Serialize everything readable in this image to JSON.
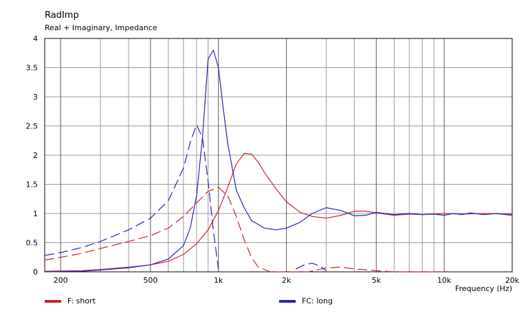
{
  "chart_data": {
    "type": "line",
    "title": "RadImp",
    "subtitle": "Real + Imaginary, Impedance",
    "xlabel": "Frequency  (Hz)",
    "ylabel": "",
    "xscale": "log",
    "xlim": [
      170,
      20000
    ],
    "ylim": [
      0,
      4
    ],
    "grid": true,
    "legend_position": "bottom",
    "y_ticks": [
      0,
      0.5,
      1,
      1.5,
      2,
      2.5,
      3,
      3.5,
      4
    ],
    "y_tick_labels": [
      "0",
      "0.5",
      "1",
      "1.5",
      "2",
      "2.5",
      "3",
      "3.5",
      "4"
    ],
    "x_ticks": [
      200,
      500,
      1000,
      2000,
      5000,
      10000,
      20000
    ],
    "x_tick_labels": [
      "200",
      "500",
      "1k",
      "2k",
      "5k",
      "10k",
      "20k"
    ],
    "x_minor_grid": [
      300,
      400,
      600,
      700,
      800,
      900,
      3000,
      4000,
      6000,
      7000,
      8000,
      9000
    ],
    "series": [
      {
        "name": "F: short",
        "color": "#cc2222",
        "parts": [
          {
            "kind": "real",
            "dash": false,
            "x": [
              170,
              250,
              300,
              400,
              500,
              600,
              700,
              800,
              900,
              1000,
              1100,
              1200,
              1300,
              1400,
              1500,
              1600,
              1800,
              2000,
              2300,
              2600,
              3000,
              3500,
              4000,
              4500,
              5000,
              6000,
              7000,
              8000,
              10000,
              12000,
              15000,
              20000
            ],
            "y": [
              0.01,
              0.02,
              0.04,
              0.08,
              0.12,
              0.18,
              0.3,
              0.48,
              0.72,
              1.05,
              1.45,
              1.85,
              2.03,
              2.02,
              1.88,
              1.7,
              1.42,
              1.2,
              1.02,
              0.95,
              0.92,
              0.97,
              1.04,
              1.04,
              1.01,
              0.97,
              0.99,
              0.98,
              1.0,
              0.99,
              1.0,
              0.99
            ]
          },
          {
            "kind": "imaginary",
            "dash": true,
            "x": [
              170,
              200,
              250,
              300,
              400,
              500,
              600,
              700,
              800,
              900,
              1000,
              1100,
              1200,
              1300,
              1400,
              1500,
              1700,
              2000,
              2500,
              2800,
              3000,
              3500,
              4000,
              5000,
              6000,
              7000,
              10000
            ],
            "y": [
              0.2,
              0.25,
              0.32,
              0.4,
              0.52,
              0.62,
              0.75,
              0.95,
              1.18,
              1.38,
              1.45,
              1.3,
              0.95,
              0.55,
              0.25,
              0.08,
              0.0,
              0.0,
              0.0,
              0.04,
              0.07,
              0.08,
              0.05,
              0.02,
              0.0,
              0.0,
              0.0
            ]
          }
        ]
      },
      {
        "name": "FC: long",
        "color": "#2222bb",
        "parts": [
          {
            "kind": "real",
            "dash": false,
            "x": [
              170,
              250,
              300,
              400,
              500,
              600,
              700,
              750,
              800,
              850,
              900,
              950,
              1000,
              1050,
              1100,
              1200,
              1300,
              1400,
              1600,
              1800,
              2000,
              2300,
              2600,
              3000,
              3500,
              4000,
              4500,
              5000,
              6000,
              7000,
              8000,
              9000,
              10000,
              11000,
              12000,
              13000,
              15000,
              17000,
              20000
            ],
            "y": [
              0.0,
              0.01,
              0.03,
              0.07,
              0.12,
              0.22,
              0.45,
              0.75,
              1.3,
              2.3,
              3.65,
              3.8,
              3.5,
              2.8,
              2.2,
              1.4,
              1.1,
              0.88,
              0.75,
              0.72,
              0.75,
              0.85,
              1.0,
              1.1,
              1.05,
              0.96,
              0.97,
              1.02,
              0.98,
              1.0,
              0.98,
              0.99,
              0.97,
              1.0,
              0.98,
              1.01,
              0.98,
              1.0,
              0.97
            ]
          },
          {
            "kind": "imaginary",
            "dash": true,
            "x": [
              170,
              200,
              250,
              300,
              400,
              500,
              600,
              700,
              750,
              800,
              850,
              900,
              950,
              1000
            ],
            "y": [
              0.28,
              0.33,
              0.42,
              0.52,
              0.72,
              0.92,
              1.22,
              1.78,
              2.22,
              2.52,
              2.3,
              1.55,
              0.7,
              0.05
            ]
          },
          {
            "kind": "imaginary",
            "dash": true,
            "x": [
              2200,
              2400,
              2600,
              2800,
              3000
            ],
            "y": [
              0.05,
              0.12,
              0.15,
              0.1,
              0.02
            ]
          }
        ]
      }
    ]
  }
}
